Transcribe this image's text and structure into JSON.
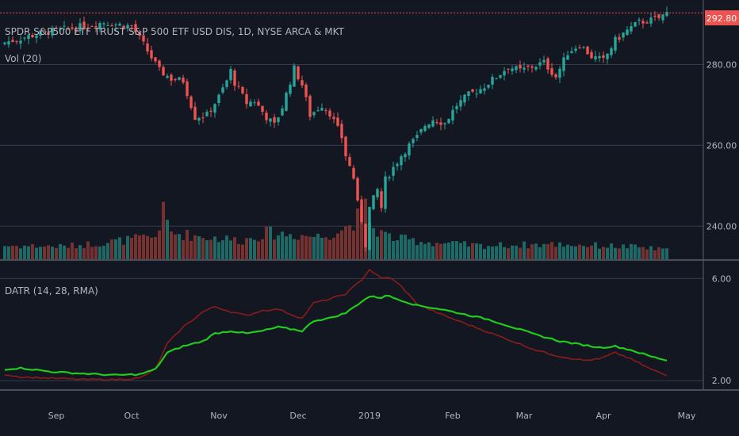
{
  "header": {
    "symbol_title": "SPDR S&P500 ETF TRUST S&P 500 ETF USD DIS, 1D, NYSE ARCA & MKT",
    "volume_label": "Vol (20)",
    "indicator_label": "DATR (14, 28, RMA)",
    "last_price": "292.80",
    "bottom_axis_value": "2.00"
  },
  "colors": {
    "background": "#131722",
    "up": "#26a69a",
    "down": "#ef5350",
    "fast_line": "#22c91e",
    "slow_line": "#8a1c1c",
    "price_tag": "#ef5350",
    "grid": "#363c4e"
  },
  "chart_data": [
    {
      "type": "candlestick",
      "title": "SPDR S&P500 ETF TRUST S&P 500 ETF USD DIS, 1D, NYSE ARCA & MKT",
      "ylim": [
        232,
        296
      ],
      "y_ticks": [
        "240.00",
        "260.00",
        "280.00"
      ],
      "last_price": 292.8,
      "x_ticks": [
        "Sep",
        "Oct",
        "Nov",
        "Dec",
        "2019",
        "Feb",
        "Mar",
        "Apr",
        "May"
      ],
      "close_anchors": [
        [
          0,
          285.5
        ],
        [
          10,
          288.0
        ],
        [
          18,
          289.2
        ],
        [
          25,
          290.5
        ],
        [
          28,
          290.0
        ],
        [
          32,
          289.5
        ],
        [
          35,
          285.0
        ],
        [
          39,
          278.5
        ],
        [
          42,
          276.5
        ],
        [
          45,
          276.0
        ],
        [
          48,
          267.0
        ],
        [
          51,
          267.5
        ],
        [
          54,
          272.0
        ],
        [
          56,
          276.0
        ],
        [
          57,
          278.5
        ],
        [
          58,
          275.5
        ],
        [
          61,
          270.5
        ],
        [
          63,
          271.0
        ],
        [
          66,
          267.0
        ],
        [
          68,
          265.0
        ],
        [
          70,
          269.5
        ],
        [
          73,
          279.0
        ],
        [
          75,
          275.0
        ],
        [
          77,
          267.5
        ],
        [
          80,
          270.0
        ],
        [
          82,
          268.0
        ],
        [
          84,
          264.0
        ],
        [
          85,
          262.0
        ],
        [
          86,
          257.5
        ],
        [
          88,
          252.0
        ],
        [
          89,
          245.5
        ],
        [
          90,
          241.5
        ],
        [
          91,
          235.5
        ],
        [
          92,
          244.5
        ],
        [
          94,
          249.0
        ],
        [
          95,
          244.5
        ],
        [
          96,
          251.5
        ],
        [
          98,
          254.5
        ],
        [
          100,
          257.5
        ],
        [
          102,
          260.0
        ],
        [
          104,
          262.0
        ],
        [
          106,
          265.0
        ],
        [
          108,
          266.5
        ],
        [
          111,
          265.5
        ],
        [
          114,
          270.0
        ],
        [
          117,
          272.5
        ],
        [
          120,
          274.0
        ],
        [
          124,
          277.0
        ],
        [
          127,
          279.5
        ],
        [
          130,
          278.5
        ],
        [
          133,
          279.5
        ],
        [
          136,
          280.5
        ],
        [
          139,
          277.0
        ],
        [
          142,
          283.0
        ],
        [
          145,
          285.0
        ],
        [
          148,
          282.0
        ],
        [
          151,
          281.0
        ],
        [
          154,
          286.0
        ],
        [
          157,
          288.5
        ],
        [
          160,
          290.5
        ],
        [
          163,
          291.0
        ],
        [
          165,
          291.5
        ],
        [
          167,
          292.8
        ]
      ],
      "volume_ylim": [
        0,
        100
      ],
      "volume_anchors": [
        [
          0,
          18
        ],
        [
          15,
          17
        ],
        [
          25,
          22
        ],
        [
          38,
          30
        ],
        [
          40,
          62
        ],
        [
          42,
          35
        ],
        [
          50,
          30
        ],
        [
          60,
          25
        ],
        [
          66,
          35
        ],
        [
          80,
          30
        ],
        [
          86,
          42
        ],
        [
          89,
          55
        ],
        [
          91,
          68
        ],
        [
          93,
          40
        ],
        [
          98,
          28
        ],
        [
          108,
          22
        ],
        [
          120,
          18
        ],
        [
          140,
          20
        ],
        [
          150,
          18
        ],
        [
          160,
          16
        ],
        [
          167,
          12
        ]
      ]
    },
    {
      "type": "line",
      "title": "DATR (14, 28, RMA)",
      "ylim": [
        1.7,
        6.6
      ],
      "y_ticks": [
        "2.00",
        "6.00"
      ],
      "x_ticks": [
        "Sep",
        "Oct",
        "Nov",
        "Dec",
        "2019",
        "Feb",
        "Mar",
        "Apr",
        "May"
      ],
      "series": [
        {
          "key": "fast",
          "color": "#22c91e",
          "points": [
            [
              0,
              2.45
            ],
            [
              4,
              2.5
            ],
            [
              12,
              2.35
            ],
            [
              20,
              2.28
            ],
            [
              28,
              2.22
            ],
            [
              34,
              2.25
            ],
            [
              38,
              2.45
            ],
            [
              41,
              3.1
            ],
            [
              45,
              3.35
            ],
            [
              50,
              3.55
            ],
            [
              53,
              3.85
            ],
            [
              57,
              3.95
            ],
            [
              61,
              3.85
            ],
            [
              65,
              3.95
            ],
            [
              69,
              4.1
            ],
            [
              73,
              4.0
            ],
            [
              75,
              3.95
            ],
            [
              78,
              4.35
            ],
            [
              82,
              4.45
            ],
            [
              86,
              4.65
            ],
            [
              90,
              5.1
            ],
            [
              92,
              5.3
            ],
            [
              95,
              5.25
            ],
            [
              96,
              5.35
            ],
            [
              100,
              5.15
            ],
            [
              104,
              4.95
            ],
            [
              110,
              4.8
            ],
            [
              116,
              4.6
            ],
            [
              122,
              4.4
            ],
            [
              128,
              4.1
            ],
            [
              134,
              3.8
            ],
            [
              140,
              3.55
            ],
            [
              146,
              3.4
            ],
            [
              150,
              3.3
            ],
            [
              154,
              3.35
            ],
            [
              158,
              3.2
            ],
            [
              163,
              2.95
            ],
            [
              167,
              2.8
            ]
          ]
        },
        {
          "key": "slow",
          "color": "#8a1c1c",
          "points": [
            [
              0,
              2.25
            ],
            [
              4,
              2.15
            ],
            [
              12,
              2.1
            ],
            [
              20,
              2.05
            ],
            [
              28,
              2.05
            ],
            [
              34,
              2.1
            ],
            [
              38,
              2.45
            ],
            [
              41,
              3.45
            ],
            [
              45,
              4.1
            ],
            [
              50,
              4.7
            ],
            [
              53,
              4.9
            ],
            [
              57,
              4.7
            ],
            [
              61,
              4.55
            ],
            [
              65,
              4.75
            ],
            [
              69,
              4.8
            ],
            [
              73,
              4.55
            ],
            [
              75,
              4.45
            ],
            [
              78,
              5.05
            ],
            [
              82,
              5.2
            ],
            [
              86,
              5.4
            ],
            [
              90,
              5.95
            ],
            [
              92,
              6.35
            ],
            [
              95,
              6.0
            ],
            [
              97,
              6.05
            ],
            [
              100,
              5.7
            ],
            [
              104,
              5.0
            ],
            [
              110,
              4.6
            ],
            [
              116,
              4.25
            ],
            [
              122,
              3.9
            ],
            [
              128,
              3.55
            ],
            [
              134,
              3.2
            ],
            [
              140,
              2.95
            ],
            [
              146,
              2.8
            ],
            [
              150,
              2.85
            ],
            [
              154,
              3.1
            ],
            [
              158,
              2.85
            ],
            [
              163,
              2.45
            ],
            [
              167,
              2.2
            ]
          ]
        }
      ]
    }
  ]
}
